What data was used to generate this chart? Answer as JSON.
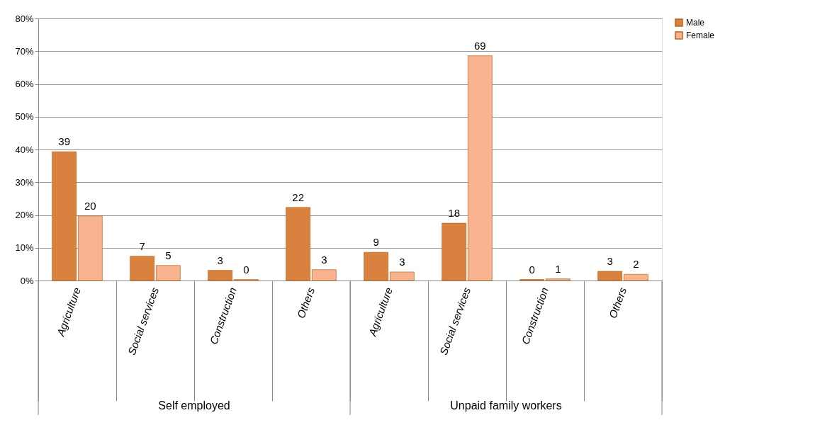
{
  "chart_data": {
    "type": "bar",
    "categories": [
      "Agriculture",
      "Social services",
      "Construction",
      "Others",
      "Agriculture",
      "Social services",
      "Construction",
      "Others"
    ],
    "annotations": [
      "Self employed",
      "Unpaid family workers"
    ],
    "series": [
      {
        "name": "Male",
        "color": "#d9823f",
        "values": [
          39.3,
          7.4,
          3.1,
          22.3,
          8.6,
          17.5,
          0.3,
          2.8
        ],
        "value_labels": [
          "39",
          "7",
          "3",
          "22",
          "9",
          "18",
          "0",
          "3"
        ]
      },
      {
        "name": "Female",
        "color": "#f9b48f",
        "values": [
          19.7,
          4.6,
          0.3,
          3.3,
          2.6,
          68.6,
          0.5,
          1.9
        ],
        "value_labels": [
          "20",
          "5",
          "0",
          "3",
          "3",
          "69",
          "1",
          "2"
        ]
      }
    ],
    "ylim": [
      0,
      80
    ],
    "yticks": [
      {
        "value": 0,
        "label": "0%"
      },
      {
        "value": 10,
        "label": "10%"
      },
      {
        "value": 20,
        "label": "20%"
      },
      {
        "value": 30,
        "label": "30%"
      },
      {
        "value": 40,
        "label": "40%"
      },
      {
        "value": 50,
        "label": "50%"
      },
      {
        "value": 60,
        "label": "60%"
      },
      {
        "value": 70,
        "label": "70%"
      },
      {
        "value": 80,
        "label": "80%"
      }
    ],
    "grid": "y",
    "legend": "right"
  }
}
